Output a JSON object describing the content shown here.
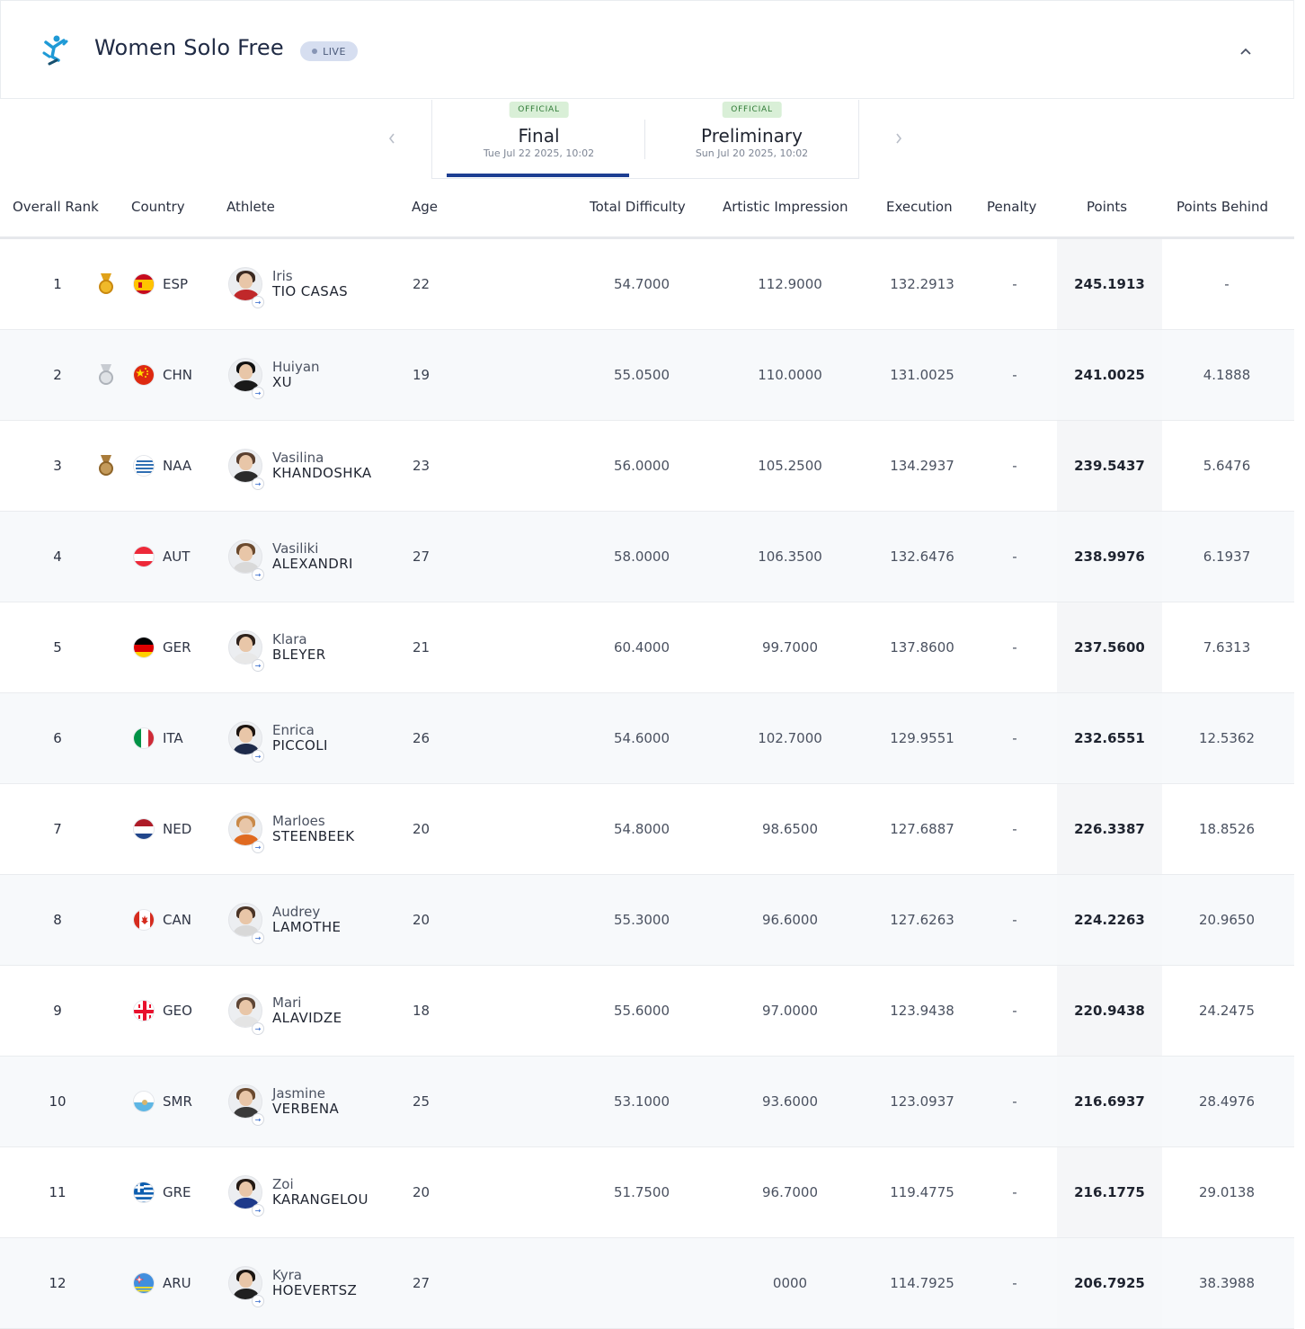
{
  "header": {
    "title": "Women Solo Free",
    "live_label": "LIVE",
    "logo_icon": "artistic-swimming-icon",
    "collapse_icon": "chevron-up-icon"
  },
  "tabs": [
    {
      "badge": "OFFICIAL",
      "label": "Final",
      "date": "Tue Jul 22 2025, 10:02",
      "active": true
    },
    {
      "badge": "OFFICIAL",
      "label": "Preliminary",
      "date": "Sun Jul 20 2025, 10:02",
      "active": false
    }
  ],
  "columns": {
    "rank": "Overall Rank",
    "country": "Country",
    "athlete": "Athlete",
    "age": "Age",
    "difficulty": "Total Difficulty",
    "artistic": "Artistic Impression",
    "execution": "Execution",
    "penalty": "Penalty",
    "points": "Points",
    "behind": "Points Behind"
  },
  "colors": {
    "accent": "#1d3e92",
    "gold": "#e0a21a",
    "silver": "#b9bdc4",
    "bronze": "#a97b3a",
    "official_bg": "#d9efd7",
    "live_bg": "#d6def0"
  },
  "rows": [
    {
      "rank": "1",
      "medal": "gold",
      "code": "ESP",
      "first": "Iris",
      "last": "TIO CASAS",
      "age": "22",
      "difficulty": "54.7000",
      "artistic": "112.9000",
      "execution": "132.2913",
      "penalty": "-",
      "points": "245.1913",
      "behind": "-"
    },
    {
      "rank": "2",
      "medal": "silver",
      "code": "CHN",
      "first": "Huiyan",
      "last": "XU",
      "age": "19",
      "difficulty": "55.0500",
      "artistic": "110.0000",
      "execution": "131.0025",
      "penalty": "-",
      "points": "241.0025",
      "behind": "4.1888"
    },
    {
      "rank": "3",
      "medal": "bronze",
      "code": "NAA",
      "first": "Vasilina",
      "last": "KHANDOSHKA",
      "age": "23",
      "difficulty": "56.0000",
      "artistic": "105.2500",
      "execution": "134.2937",
      "penalty": "-",
      "points": "239.5437",
      "behind": "5.6476"
    },
    {
      "rank": "4",
      "medal": "",
      "code": "AUT",
      "first": "Vasiliki",
      "last": "ALEXANDRI",
      "age": "27",
      "difficulty": "58.0000",
      "artistic": "106.3500",
      "execution": "132.6476",
      "penalty": "-",
      "points": "238.9976",
      "behind": "6.1937"
    },
    {
      "rank": "5",
      "medal": "",
      "code": "GER",
      "first": "Klara",
      "last": "BLEYER",
      "age": "21",
      "difficulty": "60.4000",
      "artistic": "99.7000",
      "execution": "137.8600",
      "penalty": "-",
      "points": "237.5600",
      "behind": "7.6313"
    },
    {
      "rank": "6",
      "medal": "",
      "code": "ITA",
      "first": "Enrica",
      "last": "PICCOLI",
      "age": "26",
      "difficulty": "54.6000",
      "artistic": "102.7000",
      "execution": "129.9551",
      "penalty": "-",
      "points": "232.6551",
      "behind": "12.5362"
    },
    {
      "rank": "7",
      "medal": "",
      "code": "NED",
      "first": "Marloes",
      "last": "STEENBEEK",
      "age": "20",
      "difficulty": "54.8000",
      "artistic": "98.6500",
      "execution": "127.6887",
      "penalty": "-",
      "points": "226.3387",
      "behind": "18.8526"
    },
    {
      "rank": "8",
      "medal": "",
      "code": "CAN",
      "first": "Audrey",
      "last": "LAMOTHE",
      "age": "20",
      "difficulty": "55.3000",
      "artistic": "96.6000",
      "execution": "127.6263",
      "penalty": "-",
      "points": "224.2263",
      "behind": "20.9650"
    },
    {
      "rank": "9",
      "medal": "",
      "code": "GEO",
      "first": "Mari",
      "last": "ALAVIDZE",
      "age": "18",
      "difficulty": "55.6000",
      "artistic": "97.0000",
      "execution": "123.9438",
      "penalty": "-",
      "points": "220.9438",
      "behind": "24.2475"
    },
    {
      "rank": "10",
      "medal": "",
      "code": "SMR",
      "first": "Jasmine",
      "last": "VERBENA",
      "age": "25",
      "difficulty": "53.1000",
      "artistic": "93.6000",
      "execution": "123.0937",
      "penalty": "-",
      "points": "216.6937",
      "behind": "28.4976"
    },
    {
      "rank": "11",
      "medal": "",
      "code": "GRE",
      "first": "Zoi",
      "last": "KARANGELOU",
      "age": "20",
      "difficulty": "51.7500",
      "artistic": "96.7000",
      "execution": "119.4775",
      "penalty": "-",
      "points": "216.1775",
      "behind": "29.0138"
    },
    {
      "rank": "12",
      "medal": "",
      "code": "ARU",
      "first": "Kyra",
      "last": "HOEVERTSZ",
      "age": "27",
      "difficulty": "",
      "artistic": "0000",
      "execution": "114.7925",
      "penalty": "-",
      "points": "206.7925",
      "behind": "38.3988"
    }
  ]
}
